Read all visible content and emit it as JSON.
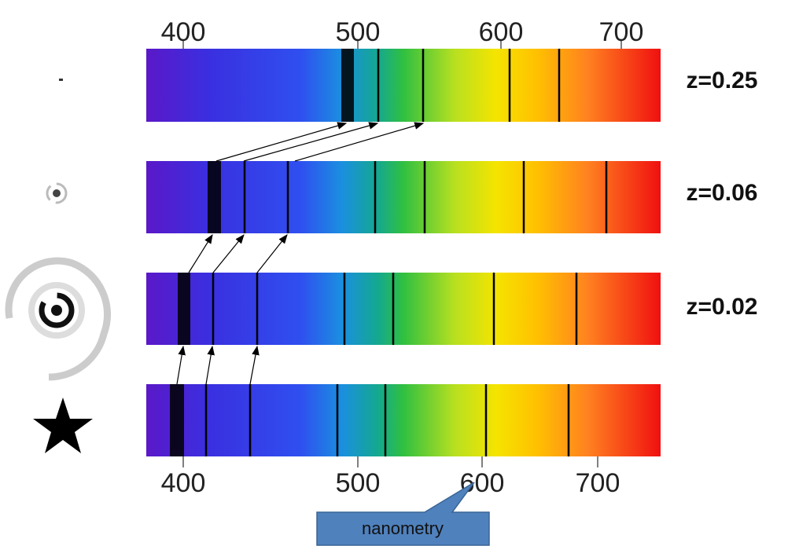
{
  "top_axis": {
    "ticks": [
      400,
      500,
      600,
      700
    ]
  },
  "bottom_axis": {
    "ticks": [
      400,
      500,
      600,
      700
    ]
  },
  "spectra": [
    {
      "label": "z=0.25"
    },
    {
      "label": "z=0.06"
    },
    {
      "label": "z=0.02"
    }
  ],
  "callout": {
    "text": "nanometry"
  }
}
